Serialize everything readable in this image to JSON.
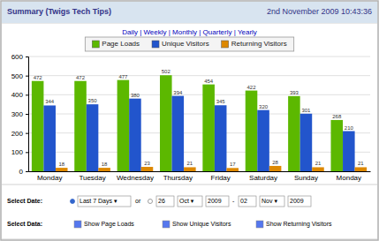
{
  "chart_data": {
    "type": "bar",
    "title": "Summary (Twigs Tech Tips)",
    "subtitle": "2nd November 2009 10:43:36",
    "annotations": [
      "Daily | Weekly | Monthly | Quarterly | Yearly",
      "Select Date:",
      "Last 7 Days ▾",
      "or",
      "26",
      "Oct ▾",
      "2009",
      "-",
      "02",
      "Nov ▾",
      "2009",
      "Select Data:",
      "Show Page Loads",
      "Show Unique Visitors",
      "Show Returning Visitors"
    ],
    "categories": [
      "Monday",
      "Tuesday",
      "Wednesday",
      "Thursday",
      "Friday",
      "Saturday",
      "Sunday",
      "Monday"
    ],
    "series": [
      {
        "name": "Page Loads",
        "color": "#5cb800",
        "values": [
          472,
          472,
          477,
          502,
          454,
          422,
          393,
          268
        ]
      },
      {
        "name": "Unique Visitors",
        "color": "#2255cc",
        "values": [
          344,
          350,
          380,
          394,
          345,
          320,
          301,
          210
        ]
      },
      {
        "name": "Returning Visitors",
        "color": "#dd8800",
        "values": [
          18,
          18,
          23,
          21,
          17,
          28,
          21,
          21
        ]
      }
    ],
    "ylim": [
      0,
      600
    ],
    "yticks": [
      0,
      100,
      200,
      300,
      400,
      500,
      600
    ],
    "grid": true,
    "legend": "top",
    "data_labels": true
  }
}
